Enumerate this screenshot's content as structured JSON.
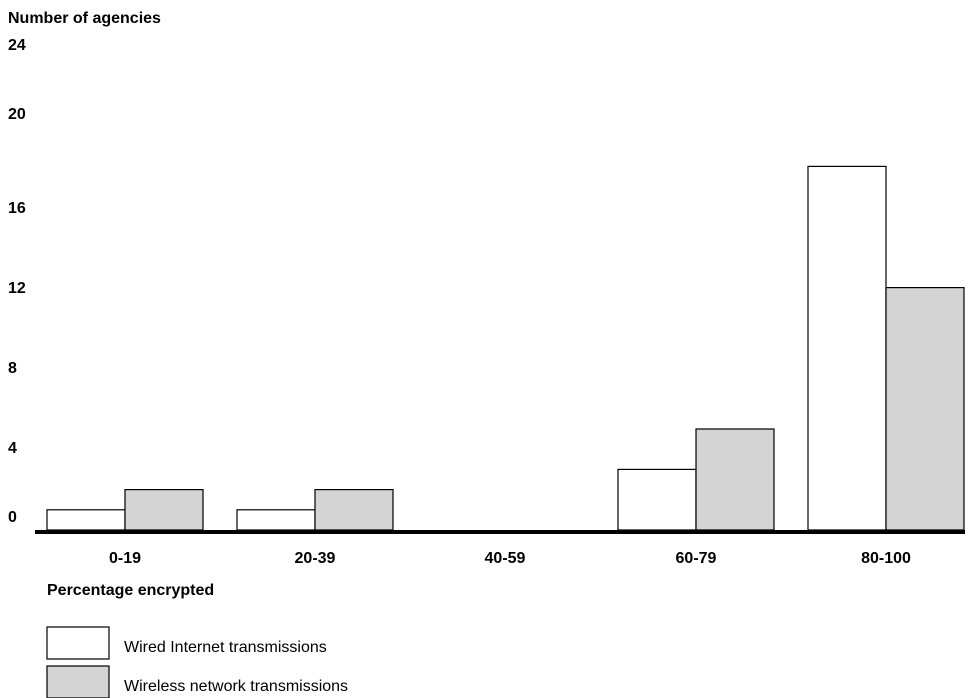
{
  "chart_data": {
    "type": "bar",
    "ylabel": "Number of agencies",
    "xlabel": "Percentage encrypted",
    "categories": [
      "0-19",
      "20-39",
      "40-59",
      "60-79",
      "80-100"
    ],
    "yticks": [
      0,
      4,
      8,
      12,
      16,
      20,
      24
    ],
    "ylim": [
      0,
      24
    ],
    "grid": false,
    "legend_position": "bottom-left",
    "series": [
      {
        "name": "Wired Internet transmissions",
        "color": "#ffffff",
        "values": [
          1,
          1,
          0,
          3,
          18
        ]
      },
      {
        "name": "Wireless network transmissions",
        "color": "#d4d4d4",
        "values": [
          2,
          2,
          0,
          5,
          12
        ]
      }
    ]
  }
}
